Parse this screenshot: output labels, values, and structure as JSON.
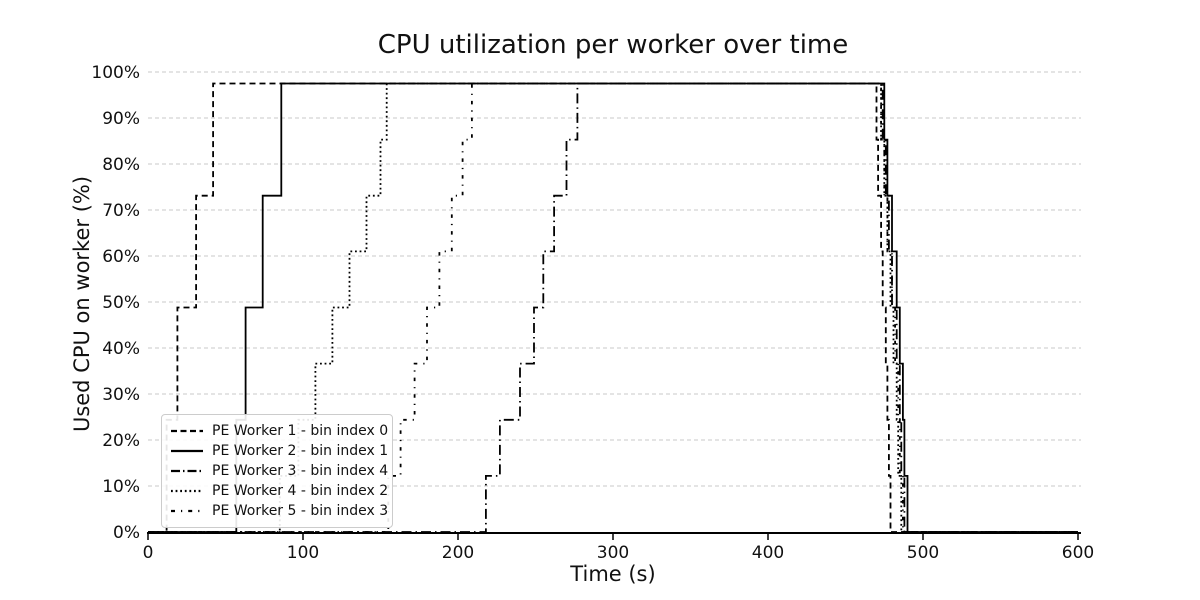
{
  "title": "CPU utilization per worker over time",
  "x_axis": {
    "label": "Time (s)",
    "ticks": [
      0,
      100,
      200,
      300,
      400,
      500,
      600
    ]
  },
  "y_axis": {
    "label": "Used CPU on worker (%)",
    "ticks": [
      "0%",
      "10%",
      "20%",
      "30%",
      "40%",
      "50%",
      "60%",
      "70%",
      "80%",
      "90%",
      "100%"
    ],
    "tick_values": [
      0,
      10,
      20,
      30,
      40,
      50,
      60,
      70,
      80,
      90,
      100
    ]
  },
  "colors": {
    "line": "#000000",
    "grid": "#c9c9c9",
    "text": "#111111",
    "legend_border": "#cccccc",
    "background": "#ffffff"
  },
  "chart_data": {
    "type": "line",
    "title": "CPU utilization per worker over time",
    "xlabel": "Time (s)",
    "ylabel": "Used CPU on worker (%)",
    "xlim": [
      0,
      600
    ],
    "ylim": [
      0,
      100
    ],
    "grid": true,
    "grid_style": "dashed-light-gray",
    "legend_position": "lower left",
    "unit_note": "stair-step lines; plateau at 97.5%, steps of ~12.2% (8 cores)",
    "series": [
      {
        "name": "PE Worker 1 - bin index 0",
        "style": "dashed",
        "dash": "6 4",
        "sample_dash": "6 3.5",
        "points": [
          [
            0,
            0
          ],
          [
            12,
            24.4
          ],
          [
            19,
            48.8
          ],
          [
            31,
            73.1
          ],
          [
            42,
            97.5
          ],
          [
            469,
            97.5
          ],
          [
            470,
            85.3
          ],
          [
            471,
            73.1
          ],
          [
            473,
            61
          ],
          [
            474,
            48.8
          ],
          [
            476,
            36.6
          ],
          [
            477,
            24.4
          ],
          [
            478,
            12.2
          ],
          [
            479,
            0
          ],
          [
            600,
            0
          ]
        ]
      },
      {
        "name": "PE Worker 2 - bin index 1",
        "style": "solid",
        "dash": "",
        "sample_dash": "",
        "points": [
          [
            0,
            0
          ],
          [
            57,
            24.4
          ],
          [
            63,
            48.8
          ],
          [
            74,
            73.1
          ],
          [
            86,
            97.5
          ],
          [
            473,
            97.5
          ],
          [
            475,
            85.3
          ],
          [
            477,
            73.1
          ],
          [
            480,
            61
          ],
          [
            483,
            48.8
          ],
          [
            485,
            36.6
          ],
          [
            487,
            24.4
          ],
          [
            488,
            12.2
          ],
          [
            490,
            0
          ],
          [
            600,
            0
          ]
        ]
      },
      {
        "name": "PE Worker 3 - bin index 4",
        "style": "dashdot",
        "dash": "10 4 1.5 4",
        "sample_dash": "9 3 1.5 3",
        "points": [
          [
            0,
            0
          ],
          [
            218,
            12.2
          ],
          [
            227,
            24.4
          ],
          [
            240,
            36.6
          ],
          [
            249,
            48.8
          ],
          [
            255,
            61
          ],
          [
            262,
            73.1
          ],
          [
            270,
            85.3
          ],
          [
            277,
            97.5
          ],
          [
            472,
            97.5
          ],
          [
            474,
            85.3
          ],
          [
            476,
            73.1
          ],
          [
            478,
            61
          ],
          [
            480,
            48.8
          ],
          [
            483,
            36.6
          ],
          [
            485,
            24.4
          ],
          [
            486,
            12.2
          ],
          [
            488,
            0
          ],
          [
            600,
            0
          ]
        ]
      },
      {
        "name": "PE Worker 4 - bin index 2",
        "style": "dotted",
        "dash": "1.8 2.8",
        "sample_dash": "1.8 2.8",
        "points": [
          [
            0,
            0
          ],
          [
            85,
            12.2
          ],
          [
            97,
            24.4
          ],
          [
            108,
            36.6
          ],
          [
            119,
            48.8
          ],
          [
            130,
            61
          ],
          [
            141,
            73.1
          ],
          [
            150,
            85.3
          ],
          [
            154,
            97.5
          ],
          [
            471,
            97.5
          ],
          [
            473,
            85.3
          ],
          [
            475,
            73.1
          ],
          [
            477,
            61
          ],
          [
            479,
            48.8
          ],
          [
            481,
            36.6
          ],
          [
            483,
            24.4
          ],
          [
            484,
            12.2
          ],
          [
            486,
            0
          ],
          [
            600,
            0
          ]
        ]
      },
      {
        "name": "PE Worker 5 - bin index 3",
        "style": "loosely-dashdotted",
        "dash": "3.5 6 1.2 6",
        "sample_dash": "4 6 1.2 6",
        "points": [
          [
            0,
            0
          ],
          [
            155,
            12.2
          ],
          [
            163,
            24.4
          ],
          [
            172,
            36.6
          ],
          [
            180,
            48.8
          ],
          [
            188,
            61
          ],
          [
            196,
            73.1
          ],
          [
            203,
            85.3
          ],
          [
            209,
            97.5
          ],
          [
            472,
            97.5
          ],
          [
            473,
            85.3
          ],
          [
            475,
            73.1
          ],
          [
            477,
            61
          ],
          [
            480,
            48.8
          ],
          [
            482,
            36.6
          ],
          [
            484,
            24.4
          ],
          [
            485,
            12.2
          ],
          [
            487,
            0
          ],
          [
            600,
            0
          ]
        ]
      }
    ]
  }
}
